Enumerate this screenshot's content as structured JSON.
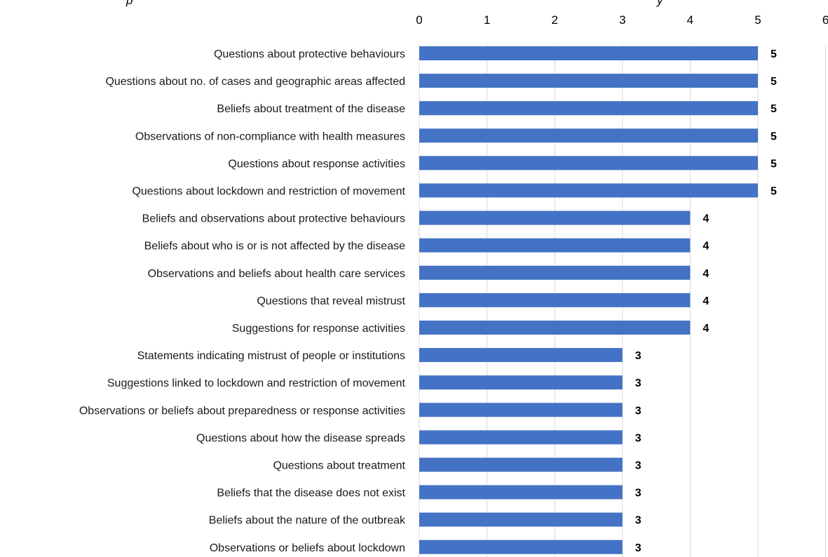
{
  "chart_data": {
    "type": "bar",
    "orientation": "horizontal",
    "title_partial_left": "p",
    "title_partial_right": "y",
    "categories": [
      "Questions about protective behaviours",
      "Questions about no. of cases and geographic areas affected",
      "Beliefs about treatment of the disease",
      "Observations of non-compliance with health measures",
      "Questions about response activities",
      "Questions about lockdown and restriction of movement",
      "Beliefs and observations about protective behaviours",
      "Beliefs about who is or is not affected by the disease",
      "Observations and beliefs about health care services",
      "Questions that reveal mistrust",
      "Suggestions for response activities",
      "Statements indicating mistrust of people or institutions",
      "Suggestions linked to lockdown and restriction of movement",
      "Observations or beliefs about preparedness or response activities",
      "Questions about how the disease spreads",
      "Questions about treatment",
      "Beliefs that the disease does not exist",
      "Beliefs about the nature of the outbreak",
      "Observations or beliefs about lockdown"
    ],
    "values": [
      5,
      5,
      5,
      5,
      5,
      5,
      4,
      4,
      4,
      4,
      4,
      3,
      3,
      3,
      3,
      3,
      3,
      3,
      3
    ],
    "xlim": [
      0,
      6
    ],
    "xticks": [
      "0",
      "1",
      "2",
      "3",
      "4",
      "5",
      "6"
    ],
    "axis_position": "top",
    "grid": true,
    "data_labels": true,
    "bar_color": "#4472c4"
  }
}
